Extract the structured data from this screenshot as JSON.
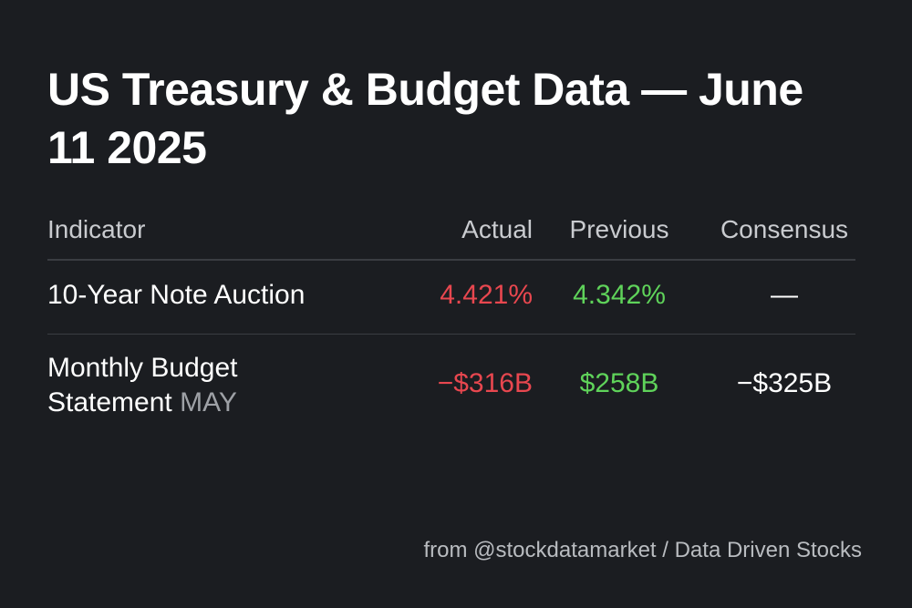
{
  "title": "US Treasury & Budget Data — June 11 2025",
  "table": {
    "headers": {
      "indicator": "Indicator",
      "actual": "Actual",
      "previous": "Previous",
      "consensus": "Consensus"
    },
    "rows": [
      {
        "indicator": "10-Year Note Auction",
        "indicator_suffix": "",
        "actual": "4.421%",
        "previous": "4.342%",
        "consensus": "—"
      },
      {
        "indicator": "Monthly Budget Statement",
        "indicator_suffix": "MAY",
        "actual": "−$316B",
        "previous": "$258B",
        "consensus": "−$325B"
      }
    ]
  },
  "footer": "from @stockdatamarket / Data Driven Stocks",
  "colors": {
    "background": "#1b1d21",
    "negative": "#e8474f",
    "positive": "#5fd35a"
  }
}
